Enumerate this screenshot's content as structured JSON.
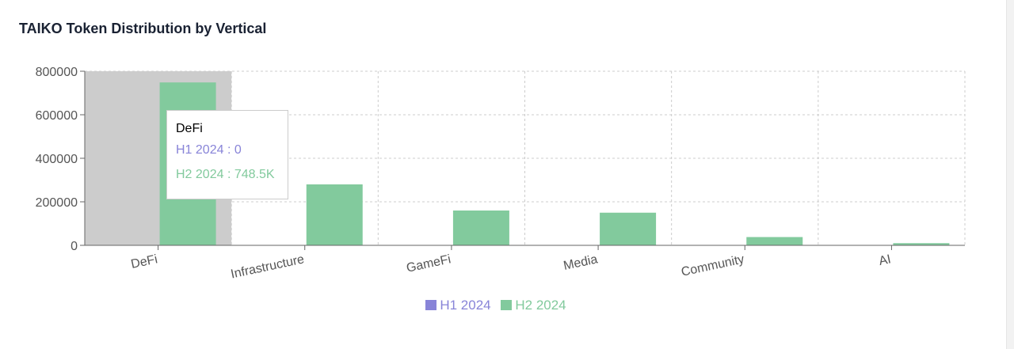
{
  "title": "TAIKO Token Distribution by Vertical",
  "colors": {
    "h1": "#8884d8",
    "h2": "#82ca9d",
    "highlight": "#cccccc",
    "grid": "#cccccc",
    "axis": "#666666"
  },
  "chart_data": {
    "type": "bar",
    "categories": [
      "DeFi",
      "Infrastructure",
      "GameFi",
      "Media",
      "Community",
      "AI"
    ],
    "series": [
      {
        "name": "H1 2024",
        "values": [
          0,
          0,
          0,
          0,
          0,
          0
        ]
      },
      {
        "name": "H2 2024",
        "values": [
          748500,
          280000,
          160000,
          150000,
          38000,
          10000
        ]
      }
    ],
    "ylim": [
      0,
      800000
    ],
    "yticks": [
      "0",
      "200000",
      "400000",
      "600000",
      "800000"
    ],
    "grid": true,
    "legend_position": "bottom"
  },
  "tooltip": {
    "title": "DeFi",
    "h1_text": "H1 2024 : 0",
    "h2_text": "H2 2024 : 748.5K"
  },
  "legend": {
    "h1_label": "H1 2024",
    "h2_label": "H2 2024"
  }
}
